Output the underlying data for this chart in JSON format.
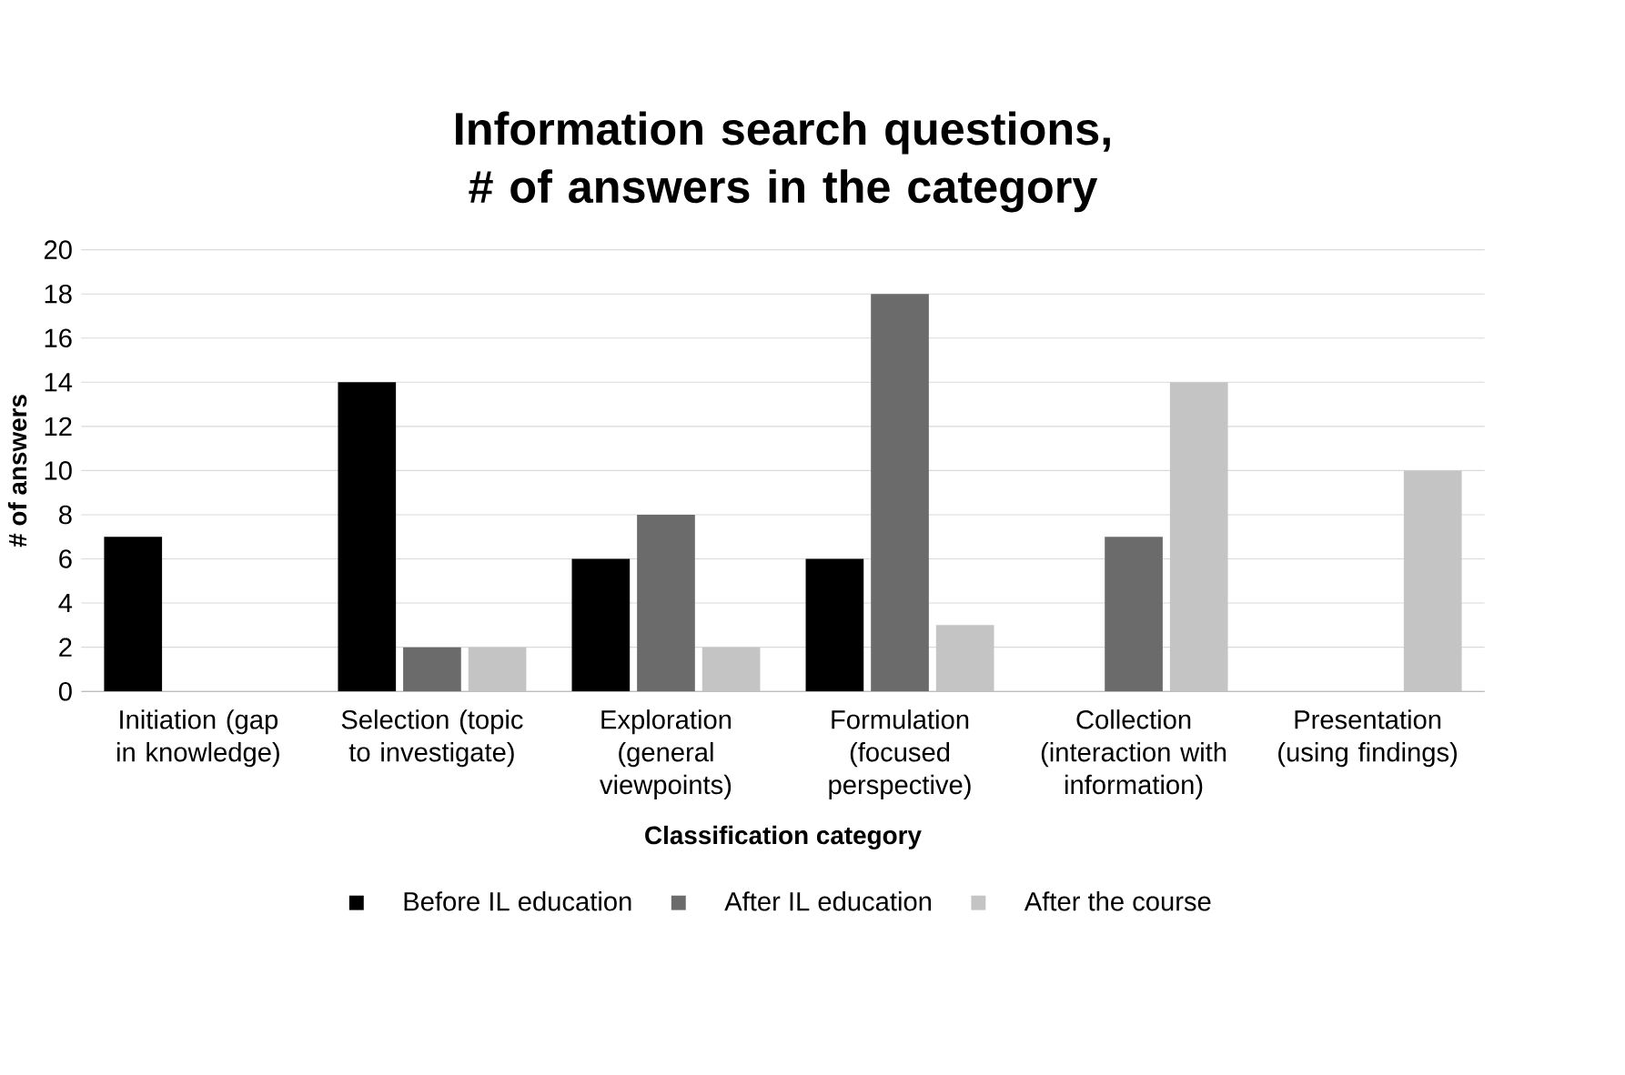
{
  "chart_data": {
    "type": "bar",
    "title": "Information search questions, # of answers in the category",
    "xlabel": "Classification category",
    "ylabel": "# of answers",
    "categories": [
      "Initiation (gap in knowledge)",
      "Selection (topic to investigate)",
      "Exploration (general viewpoints)",
      "Formulation (focused perspective)",
      "Collection (interaction with information)",
      "Presentation (using findings)"
    ],
    "series": [
      {
        "name": "Before IL education",
        "color": "#000000",
        "values": [
          7,
          14,
          6,
          6,
          0,
          0
        ]
      },
      {
        "name": "After IL education",
        "color": "#6b6b6b",
        "values": [
          0,
          2,
          8,
          18,
          7,
          0
        ]
      },
      {
        "name": "After the course",
        "color": "#c4c4c4",
        "values": [
          0,
          2,
          2,
          3,
          14,
          10
        ]
      }
    ],
    "ylim": [
      0,
      20
    ],
    "yticks": [
      0,
      2,
      4,
      6,
      8,
      10,
      12,
      14,
      16,
      18,
      20
    ],
    "grid": "y",
    "legend": "bottom"
  }
}
